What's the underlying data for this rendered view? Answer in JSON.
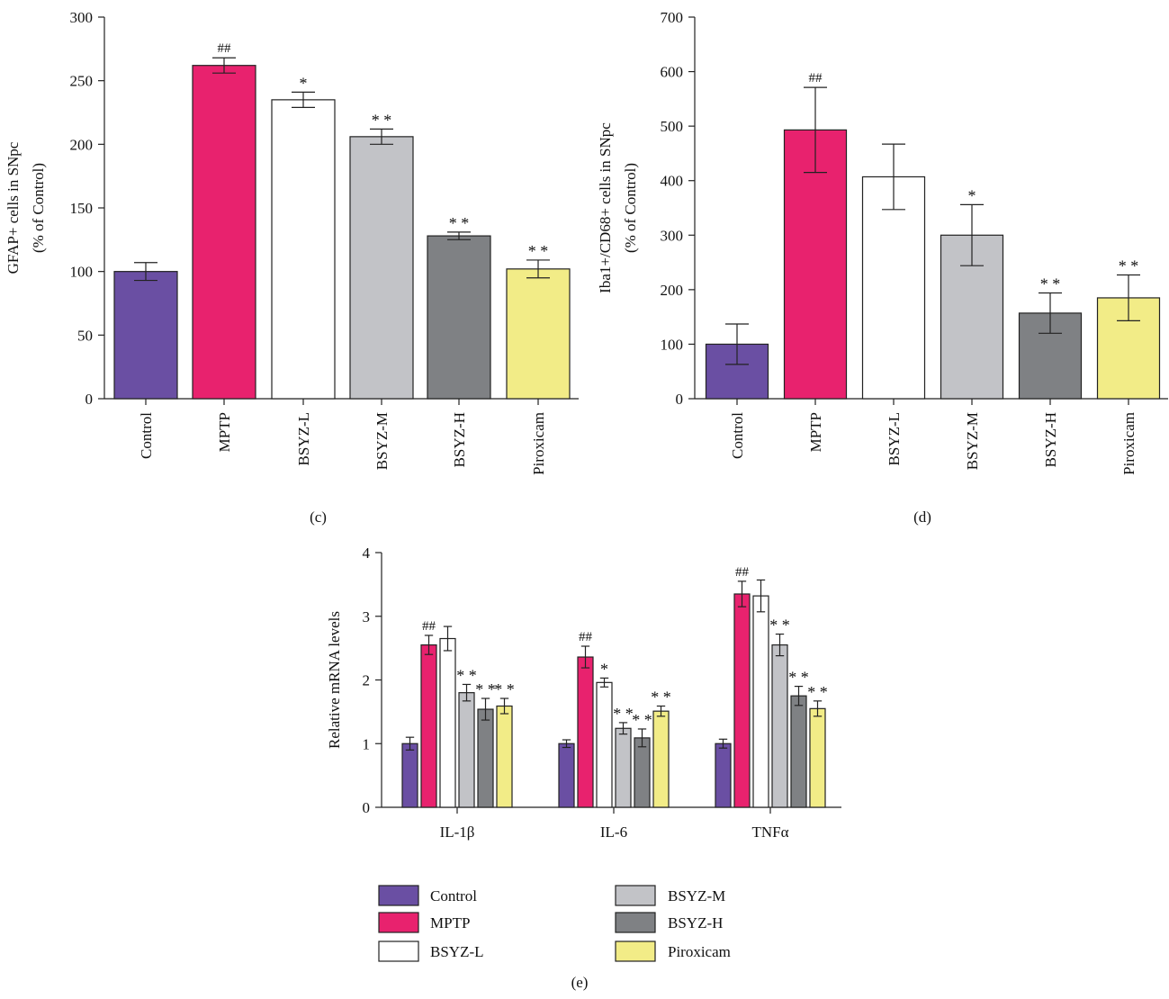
{
  "colors": {
    "Control": "#6a4fa3",
    "MPTP": "#e8226e",
    "BSYZ-L": "#ffffff",
    "BSYZ-M": "#c2c3c7",
    "BSYZ-H": "#7f8184",
    "Piroxicam": "#f2ec87"
  },
  "legend": {
    "items": [
      "Control",
      "MPTP",
      "BSYZ-L",
      "BSYZ-M",
      "BSYZ-H",
      "Piroxicam"
    ],
    "panel_label": "(e)"
  },
  "chart_data": [
    {
      "type": "bar",
      "panel": "(c)",
      "ylabel_lines": [
        "GFAP+ cells in SNpc",
        "(% of Control)"
      ],
      "ylim": [
        0,
        300
      ],
      "yticks": [
        0,
        50,
        100,
        150,
        200,
        250,
        300
      ],
      "categories": [
        "Control",
        "MPTP",
        "BSYZ-L",
        "BSYZ-M",
        "BSYZ-H",
        "Piroxicam"
      ],
      "values": [
        100,
        262,
        235,
        206,
        128,
        102
      ],
      "errors": [
        7,
        6,
        6,
        6,
        3,
        7
      ],
      "annotations": [
        "",
        "##",
        "*",
        "* *",
        "* *",
        "* *"
      ]
    },
    {
      "type": "bar",
      "panel": "(d)",
      "ylabel_lines": [
        "Iba1+/CD68+ cells in SNpc",
        "(% of Control)"
      ],
      "ylim": [
        0,
        700
      ],
      "yticks": [
        0,
        100,
        200,
        300,
        400,
        500,
        600,
        700
      ],
      "categories": [
        "Control",
        "MPTP",
        "BSYZ-L",
        "BSYZ-M",
        "BSYZ-H",
        "Piroxicam"
      ],
      "values": [
        100,
        493,
        407,
        300,
        157,
        185
      ],
      "errors": [
        37,
        78,
        60,
        56,
        37,
        42
      ],
      "annotations": [
        "",
        "##",
        "",
        "*",
        "* *",
        "* *"
      ]
    },
    {
      "type": "bar",
      "panel": "(e)",
      "ylabel": "Relative mRNA levels",
      "ylim": [
        0,
        4
      ],
      "yticks": [
        0,
        1,
        2,
        3,
        4
      ],
      "categories": [
        "IL-1β",
        "IL-6",
        "TNFα"
      ],
      "series": [
        {
          "name": "Control",
          "values": [
            1.0,
            1.0,
            1.0
          ],
          "errors": [
            0.1,
            0.06,
            0.07
          ],
          "annotations": [
            "",
            "",
            ""
          ]
        },
        {
          "name": "MPTP",
          "values": [
            2.55,
            2.36,
            3.35
          ],
          "errors": [
            0.15,
            0.17,
            0.2
          ],
          "annotations": [
            "##",
            "##",
            "##"
          ]
        },
        {
          "name": "BSYZ-L",
          "values": [
            2.65,
            1.96,
            3.32
          ],
          "errors": [
            0.19,
            0.07,
            0.25
          ],
          "annotations": [
            "",
            "*",
            ""
          ]
        },
        {
          "name": "BSYZ-M",
          "values": [
            1.8,
            1.24,
            2.55
          ],
          "errors": [
            0.13,
            0.09,
            0.17
          ],
          "annotations": [
            "* *",
            "* *",
            "* *"
          ]
        },
        {
          "name": "BSYZ-H",
          "values": [
            1.54,
            1.09,
            1.75
          ],
          "errors": [
            0.17,
            0.14,
            0.15
          ],
          "annotations": [
            "* *",
            "* *",
            "* *"
          ]
        },
        {
          "name": "Piroxicam",
          "values": [
            1.59,
            1.51,
            1.55
          ],
          "errors": [
            0.12,
            0.08,
            0.12
          ],
          "annotations": [
            "* *",
            "* *",
            "* *"
          ]
        }
      ]
    }
  ]
}
